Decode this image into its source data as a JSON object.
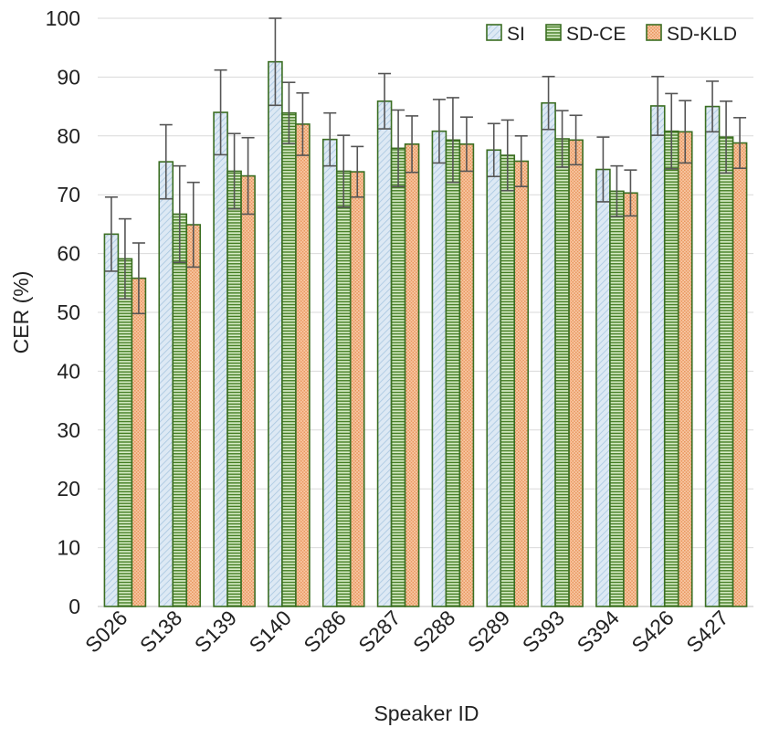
{
  "chart_data": {
    "type": "bar",
    "title": "",
    "xlabel": "Speaker ID",
    "ylabel": "CER (%)",
    "ylim": [
      0,
      100
    ],
    "yticks": [
      0,
      10,
      20,
      30,
      40,
      50,
      60,
      70,
      80,
      90,
      100
    ],
    "grid": true,
    "legend_position": "top-right",
    "categories": [
      "S026",
      "S138",
      "S139",
      "S140",
      "S286",
      "S287",
      "S288",
      "S289",
      "S393",
      "S394",
      "S426",
      "S427"
    ],
    "series": [
      {
        "name": "SI",
        "pattern": "diagonal",
        "fill_color": "#dde9f4",
        "stripe_color": "#a8c6e0",
        "border_color": "#3b6e22",
        "values": [
          63.3,
          75.6,
          84.0,
          92.6,
          79.4,
          85.9,
          80.8,
          77.6,
          85.6,
          74.3,
          85.1,
          85.0
        ],
        "errors": [
          6.3,
          6.3,
          7.2,
          7.4,
          4.5,
          4.7,
          5.4,
          4.5,
          4.5,
          5.5,
          5.0,
          4.3
        ]
      },
      {
        "name": "SD-CE",
        "pattern": "horizontal",
        "fill_color": "#d7ecc7",
        "stripe_color": "#3f7a1e",
        "border_color": "#3b6e22",
        "values": [
          59.1,
          66.7,
          74.0,
          83.9,
          74.0,
          77.9,
          79.3,
          76.7,
          79.5,
          70.6,
          80.8,
          79.8
        ],
        "errors": [
          6.8,
          8.2,
          6.4,
          5.2,
          6.1,
          6.5,
          7.2,
          6.0,
          4.8,
          4.3,
          6.4,
          6.1
        ]
      },
      {
        "name": "SD-KLD",
        "pattern": "dotted",
        "fill_color": "#f8c9a6",
        "stripe_color": "#e8955c",
        "border_color": "#3b6e22",
        "values": [
          55.8,
          64.9,
          73.2,
          82.0,
          73.9,
          78.6,
          78.6,
          75.7,
          79.3,
          70.3,
          80.7,
          78.8
        ],
        "errors": [
          6.0,
          7.2,
          6.5,
          5.3,
          4.3,
          4.8,
          4.6,
          4.3,
          4.2,
          3.9,
          5.3,
          4.3
        ]
      }
    ]
  }
}
